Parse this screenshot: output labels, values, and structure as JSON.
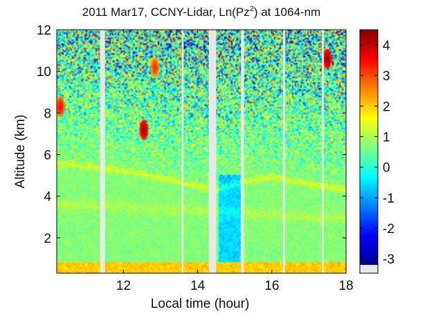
{
  "chart_data": {
    "type": "heatmap",
    "title_prefix": "2011 Mar17, CCNY-Lidar, Ln(Pz",
    "title_sup": "2",
    "title_suffix": ") at 1064-nm",
    "xlabel": "Local time (hour)",
    "ylabel": "Altitude (km)",
    "xlim": [
      10.2,
      18.0
    ],
    "ylim": [
      0.3,
      12.0
    ],
    "x_ticks": [
      12,
      14,
      16,
      18
    ],
    "x_tick_labels": [
      "12",
      "14",
      "16",
      "18"
    ],
    "y_ticks": [
      2,
      4,
      6,
      8,
      10,
      12
    ],
    "y_tick_labels": [
      "2",
      "4",
      "6",
      "8",
      "10",
      "12"
    ],
    "colorbar": {
      "colormap": "jet",
      "range": [
        -3.2,
        4.5
      ],
      "ticks": [
        -3,
        -2,
        -1,
        0,
        1,
        2,
        3,
        4
      ],
      "tick_labels": [
        "-3",
        "-2",
        "-1",
        "0",
        "1",
        "2",
        "3",
        "4"
      ],
      "no_data_color": "#e8e8e8"
    },
    "data_gaps_hours": [
      [
        11.37,
        11.5
      ],
      [
        13.57,
        13.62
      ],
      [
        14.3,
        14.5
      ],
      [
        15.17,
        15.25
      ],
      [
        16.3,
        16.36
      ],
      [
        17.35,
        17.4
      ]
    ],
    "boundary_layer_top_km": {
      "times": [
        10.2,
        12.0,
        13.0,
        14.0,
        14.5,
        15.0,
        16.0,
        17.0,
        18.0
      ],
      "values": [
        5.6,
        5.2,
        4.9,
        4.5,
        4.3,
        4.6,
        4.9,
        4.6,
        4.3
      ]
    },
    "aerosol_layer_km": {
      "times": [
        10.2,
        12.0,
        13.0,
        14.0,
        15.0,
        16.0,
        17.0,
        18.0
      ],
      "values": [
        3.6,
        3.5,
        3.4,
        3.3,
        3.2,
        3.1,
        3.0,
        2.9
      ]
    },
    "cloud_features": [
      {
        "name": "cloud-8km-early",
        "t": 10.3,
        "alt": 8.3,
        "value": 3.5
      },
      {
        "name": "cloud-7km-noon",
        "t": 12.55,
        "alt": 7.2,
        "value": 4.2
      },
      {
        "name": "cloud-10km-noon",
        "t": 12.85,
        "alt": 10.2,
        "value": 3.2
      },
      {
        "name": "cirrus-11km-afternoon",
        "t": 17.5,
        "alt": 10.6,
        "value": 4.3
      }
    ]
  }
}
